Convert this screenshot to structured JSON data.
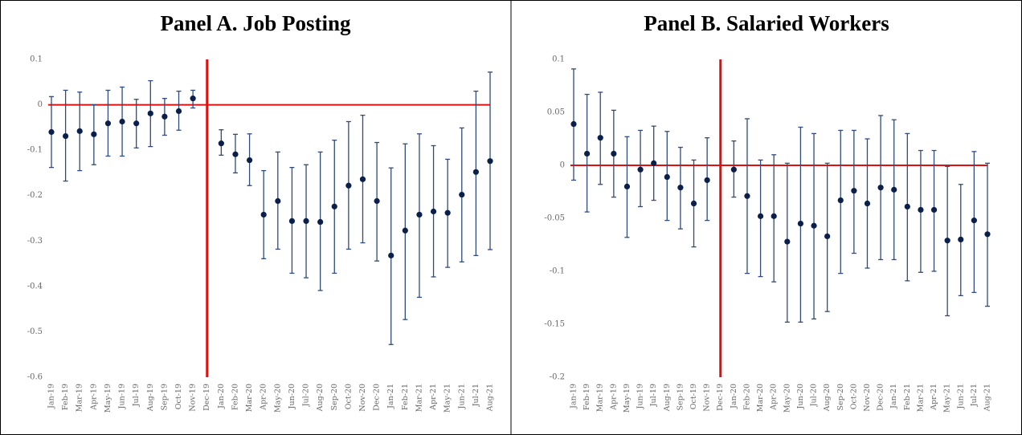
{
  "chart_data": [
    {
      "type": "errorbar",
      "title": "Panel A. Job Posting",
      "categories": [
        "Jan-19",
        "Feb-19",
        "Mar-19",
        "Apr-19",
        "May-19",
        "Jun-19",
        "Jul-19",
        "Aug-19",
        "Sep-19",
        "Oct-19",
        "Nov-19",
        "Dec-19",
        "Jan-20",
        "Feb-20",
        "Mar-20",
        "Apr-20",
        "May-20",
        "Jun-20",
        "Jul-20",
        "Aug-20",
        "Sep-20",
        "Oct-20",
        "Nov-20",
        "Dec-20",
        "Jan-21",
        "Feb-21",
        "Mar-21",
        "Apr-21",
        "May-21",
        "Jun-21",
        "Jul-21",
        "Aug-21"
      ],
      "values": [
        -0.06,
        -0.069,
        -0.058,
        -0.065,
        -0.041,
        -0.037,
        -0.041,
        -0.019,
        -0.026,
        -0.014,
        0.014,
        null,
        -0.085,
        -0.109,
        -0.122,
        -0.242,
        -0.212,
        -0.256,
        -0.256,
        -0.258,
        -0.224,
        -0.178,
        -0.164,
        -0.212,
        -0.332,
        -0.277,
        -0.242,
        -0.235,
        -0.238,
        -0.198,
        -0.148,
        -0.124
      ],
      "upper": [
        0.018,
        0.032,
        0.028,
        0.0,
        0.032,
        0.039,
        0.012,
        0.053,
        0.014,
        0.03,
        0.032,
        null,
        -0.055,
        -0.065,
        -0.064,
        -0.145,
        -0.104,
        -0.138,
        -0.132,
        -0.104,
        -0.078,
        -0.037,
        -0.023,
        -0.083,
        -0.139,
        -0.086,
        -0.064,
        -0.09,
        -0.12,
        -0.051,
        0.03,
        0.072
      ],
      "lower": [
        -0.138,
        -0.168,
        -0.145,
        -0.132,
        -0.113,
        -0.113,
        -0.095,
        -0.092,
        -0.067,
        -0.056,
        -0.007,
        null,
        -0.111,
        -0.15,
        -0.178,
        -0.339,
        -0.318,
        -0.371,
        -0.381,
        -0.409,
        -0.371,
        -0.318,
        -0.304,
        -0.344,
        -0.528,
        -0.473,
        -0.424,
        -0.379,
        -0.358,
        -0.346,
        -0.332,
        -0.319
      ],
      "color": "#0b1f4b",
      "bar_color": "#2f4b7c",
      "ref_line_color": "#e01010",
      "hline_at": 0,
      "vline_at": "Dec-19",
      "ylim": [
        -0.6,
        0.1
      ],
      "yticks": [
        0.1,
        0,
        -0.1,
        -0.2,
        -0.3,
        -0.4,
        -0.5,
        -0.6
      ]
    },
    {
      "type": "errorbar",
      "title": "Panel B. Salaried Workers",
      "categories": [
        "Jan-19",
        "Feb-19",
        "Mar-19",
        "Apr-19",
        "May-19",
        "Jun-19",
        "Jul-19",
        "Aug-19",
        "Sep-19",
        "Oct-19",
        "Nov-19",
        "Dec-19",
        "Jan-20",
        "Feb-20",
        "Mar-20",
        "Apr-20",
        "May-20",
        "Jun-20",
        "Jul-20",
        "Aug-20",
        "Sep-20",
        "Oct-20",
        "Nov-20",
        "Dec-20",
        "Jan-21",
        "Feb-21",
        "Mar-21",
        "Apr-21",
        "May-21",
        "Jun-21",
        "Jul-21",
        "Aug-21"
      ],
      "values": [
        0.039,
        0.011,
        0.026,
        0.011,
        -0.02,
        -0.004,
        0.002,
        -0.011,
        -0.021,
        -0.036,
        -0.014,
        null,
        -0.004,
        -0.029,
        -0.048,
        -0.048,
        -0.072,
        -0.055,
        -0.057,
        -0.067,
        -0.033,
        -0.024,
        -0.036,
        -0.021,
        -0.023,
        -0.039,
        -0.042,
        -0.042,
        -0.071,
        -0.07,
        -0.052,
        -0.065
      ],
      "upper": [
        0.091,
        0.067,
        0.069,
        0.052,
        0.027,
        0.033,
        0.037,
        0.032,
        0.017,
        0.005,
        0.026,
        null,
        0.023,
        0.044,
        0.005,
        0.01,
        0.002,
        0.036,
        0.03,
        0.002,
        0.033,
        0.033,
        0.025,
        0.047,
        0.043,
        0.03,
        0.014,
        0.014,
        -0.001,
        -0.018,
        0.013,
        0.002
      ],
      "lower": [
        -0.014,
        -0.044,
        -0.018,
        -0.03,
        -0.068,
        -0.039,
        -0.033,
        -0.052,
        -0.06,
        -0.077,
        -0.052,
        null,
        -0.03,
        -0.102,
        -0.105,
        -0.11,
        -0.148,
        -0.148,
        -0.145,
        -0.138,
        -0.102,
        -0.083,
        -0.097,
        -0.089,
        -0.089,
        -0.109,
        -0.101,
        -0.1,
        -0.142,
        -0.123,
        -0.12,
        -0.133
      ],
      "color": "#0b1f4b",
      "bar_color": "#2f4b7c",
      "ref_line_color": "#e01010",
      "hline_at": 0,
      "vline_at": "Dec-19",
      "ylim": [
        -0.2,
        0.1
      ],
      "yticks": [
        0.1,
        0.05,
        0,
        -0.05,
        -0.1,
        -0.15,
        -0.2
      ]
    }
  ]
}
